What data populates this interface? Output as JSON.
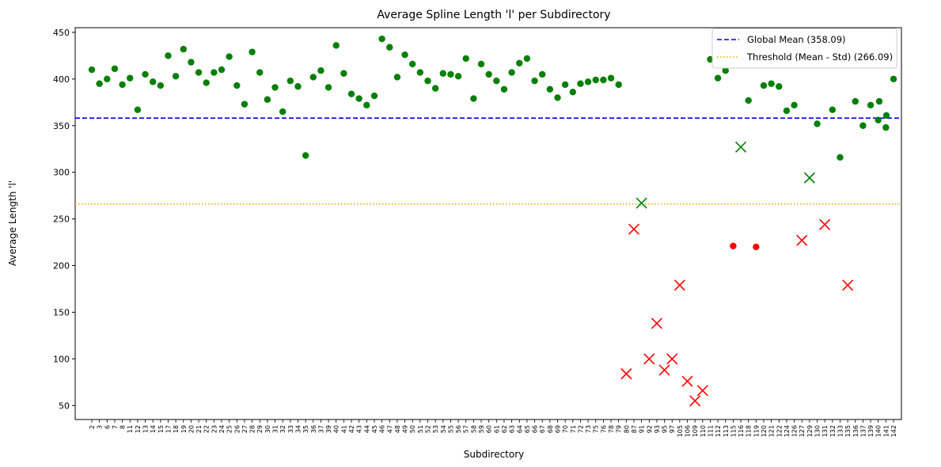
{
  "chart_data": {
    "type": "scatter",
    "title": "Average Spline Length 'l' per Subdirectory",
    "xlabel": "Subdirectory",
    "ylabel": "Average Length 'l'",
    "ylim": [
      35,
      455
    ],
    "yticks": [
      50,
      100,
      150,
      200,
      250,
      300,
      350,
      400,
      450
    ],
    "grid": false,
    "legend_position": "top-right",
    "colors": {
      "normal": "#008000",
      "below_threshold": "#ff0000",
      "global_mean": "#0000ff",
      "threshold": "#ffa500"
    },
    "categories": [
      "2",
      "3",
      "6",
      "7",
      "8",
      "11",
      "12",
      "13",
      "14",
      "15",
      "17",
      "18",
      "19",
      "20",
      "21",
      "22",
      "23",
      "24",
      "25",
      "26",
      "27",
      "28",
      "29",
      "30",
      "31",
      "32",
      "33",
      "34",
      "35",
      "36",
      "37",
      "39",
      "40",
      "41",
      "42",
      "43",
      "44",
      "45",
      "46",
      "47",
      "48",
      "49",
      "50",
      "51",
      "52",
      "53",
      "54",
      "55",
      "56",
      "57",
      "58",
      "59",
      "60",
      "61",
      "62",
      "63",
      "64",
      "65",
      "66",
      "67",
      "68",
      "69",
      "70",
      "71",
      "72",
      "73",
      "75",
      "76",
      "78",
      "79",
      "80",
      "87",
      "91",
      "92",
      "93",
      "95",
      "97",
      "105",
      "106",
      "109",
      "110",
      "111",
      "112",
      "113",
      "115",
      "116",
      "118",
      "119",
      "120",
      "121",
      "122",
      "124",
      "126",
      "127",
      "129",
      "130",
      "131",
      "132",
      "133",
      "135",
      "136",
      "137",
      "139",
      "140",
      "141",
      "142"
    ],
    "points": [
      {
        "x": "2",
        "y": 410,
        "marker": "circle",
        "color": "green"
      },
      {
        "x": "3",
        "y": 395,
        "marker": "circle",
        "color": "green"
      },
      {
        "x": "6",
        "y": 400,
        "marker": "circle",
        "color": "green"
      },
      {
        "x": "7",
        "y": 411,
        "marker": "circle",
        "color": "green"
      },
      {
        "x": "8",
        "y": 394,
        "marker": "circle",
        "color": "green"
      },
      {
        "x": "11",
        "y": 401,
        "marker": "circle",
        "color": "green"
      },
      {
        "x": "12",
        "y": 367,
        "marker": "circle",
        "color": "green"
      },
      {
        "x": "13",
        "y": 405,
        "marker": "circle",
        "color": "green"
      },
      {
        "x": "14",
        "y": 397,
        "marker": "circle",
        "color": "green"
      },
      {
        "x": "15",
        "y": 393,
        "marker": "circle",
        "color": "green"
      },
      {
        "x": "17",
        "y": 425,
        "marker": "circle",
        "color": "green"
      },
      {
        "x": "18",
        "y": 403,
        "marker": "circle",
        "color": "green"
      },
      {
        "x": "19",
        "y": 432,
        "marker": "circle",
        "color": "green"
      },
      {
        "x": "20",
        "y": 418,
        "marker": "circle",
        "color": "green"
      },
      {
        "x": "21",
        "y": 407,
        "marker": "circle",
        "color": "green"
      },
      {
        "x": "22",
        "y": 396,
        "marker": "circle",
        "color": "green"
      },
      {
        "x": "23",
        "y": 407,
        "marker": "circle",
        "color": "green"
      },
      {
        "x": "24",
        "y": 410,
        "marker": "circle",
        "color": "green"
      },
      {
        "x": "25",
        "y": 424,
        "marker": "circle",
        "color": "green"
      },
      {
        "x": "26",
        "y": 393,
        "marker": "circle",
        "color": "green"
      },
      {
        "x": "27",
        "y": 373,
        "marker": "circle",
        "color": "green"
      },
      {
        "x": "28",
        "y": 429,
        "marker": "circle",
        "color": "green"
      },
      {
        "x": "29",
        "y": 407,
        "marker": "circle",
        "color": "green"
      },
      {
        "x": "30",
        "y": 378,
        "marker": "circle",
        "color": "green"
      },
      {
        "x": "31",
        "y": 391,
        "marker": "circle",
        "color": "green"
      },
      {
        "x": "32",
        "y": 365,
        "marker": "circle",
        "color": "green"
      },
      {
        "x": "33",
        "y": 398,
        "marker": "circle",
        "color": "green"
      },
      {
        "x": "34",
        "y": 392,
        "marker": "circle",
        "color": "green"
      },
      {
        "x": "35",
        "y": 318,
        "marker": "circle",
        "color": "green"
      },
      {
        "x": "36",
        "y": 402,
        "marker": "circle",
        "color": "green"
      },
      {
        "x": "37",
        "y": 409,
        "marker": "circle",
        "color": "green"
      },
      {
        "x": "39",
        "y": 391,
        "marker": "circle",
        "color": "green"
      },
      {
        "x": "40",
        "y": 436,
        "marker": "circle",
        "color": "green"
      },
      {
        "x": "41",
        "y": 406,
        "marker": "circle",
        "color": "green"
      },
      {
        "x": "42",
        "y": 384,
        "marker": "circle",
        "color": "green"
      },
      {
        "x": "43",
        "y": 379,
        "marker": "circle",
        "color": "green"
      },
      {
        "x": "44",
        "y": 372,
        "marker": "circle",
        "color": "green"
      },
      {
        "x": "45",
        "y": 382,
        "marker": "circle",
        "color": "green"
      },
      {
        "x": "46",
        "y": 443,
        "marker": "circle",
        "color": "green"
      },
      {
        "x": "47",
        "y": 434,
        "marker": "circle",
        "color": "green"
      },
      {
        "x": "48",
        "y": 402,
        "marker": "circle",
        "color": "green"
      },
      {
        "x": "49",
        "y": 426,
        "marker": "circle",
        "color": "green"
      },
      {
        "x": "50",
        "y": 416,
        "marker": "circle",
        "color": "green"
      },
      {
        "x": "51",
        "y": 407,
        "marker": "circle",
        "color": "green"
      },
      {
        "x": "52",
        "y": 398,
        "marker": "circle",
        "color": "green"
      },
      {
        "x": "53",
        "y": 390,
        "marker": "circle",
        "color": "green"
      },
      {
        "x": "54",
        "y": 406,
        "marker": "circle",
        "color": "green"
      },
      {
        "x": "55",
        "y": 405,
        "marker": "circle",
        "color": "green"
      },
      {
        "x": "56",
        "y": 403,
        "marker": "circle",
        "color": "green"
      },
      {
        "x": "57",
        "y": 422,
        "marker": "circle",
        "color": "green"
      },
      {
        "x": "58",
        "y": 379,
        "marker": "circle",
        "color": "green"
      },
      {
        "x": "59",
        "y": 416,
        "marker": "circle",
        "color": "green"
      },
      {
        "x": "60",
        "y": 405,
        "marker": "circle",
        "color": "green"
      },
      {
        "x": "61",
        "y": 398,
        "marker": "circle",
        "color": "green"
      },
      {
        "x": "62",
        "y": 389,
        "marker": "circle",
        "color": "green"
      },
      {
        "x": "63",
        "y": 407,
        "marker": "circle",
        "color": "green"
      },
      {
        "x": "64",
        "y": 417,
        "marker": "circle",
        "color": "green"
      },
      {
        "x": "65",
        "y": 422,
        "marker": "circle",
        "color": "green"
      },
      {
        "x": "66",
        "y": 398,
        "marker": "circle",
        "color": "green"
      },
      {
        "x": "67",
        "y": 405,
        "marker": "circle",
        "color": "green"
      },
      {
        "x": "68",
        "y": 389,
        "marker": "circle",
        "color": "green"
      },
      {
        "x": "69",
        "y": 380,
        "marker": "circle",
        "color": "green"
      },
      {
        "x": "70",
        "y": 394,
        "marker": "circle",
        "color": "green"
      },
      {
        "x": "71",
        "y": 386,
        "marker": "circle",
        "color": "green"
      },
      {
        "x": "72",
        "y": 395,
        "marker": "circle",
        "color": "green"
      },
      {
        "x": "73",
        "y": 397,
        "marker": "circle",
        "color": "green"
      },
      {
        "x": "75",
        "y": 399,
        "marker": "circle",
        "color": "green"
      },
      {
        "x": "76",
        "y": 399,
        "marker": "circle",
        "color": "green"
      },
      {
        "x": "78",
        "y": 401,
        "marker": "circle",
        "color": "green"
      },
      {
        "x": "79",
        "y": 394,
        "marker": "circle",
        "color": "green"
      },
      {
        "x": "80",
        "y": 84,
        "marker": "x",
        "color": "red"
      },
      {
        "x": "87",
        "y": 239,
        "marker": "x",
        "color": "red"
      },
      {
        "x": "91",
        "y": 267,
        "marker": "x",
        "color": "green"
      },
      {
        "x": "92",
        "y": 100,
        "marker": "x",
        "color": "red"
      },
      {
        "x": "93",
        "y": 138,
        "marker": "x",
        "color": "red"
      },
      {
        "x": "95",
        "y": 88,
        "marker": "x",
        "color": "red"
      },
      {
        "x": "97",
        "y": 100,
        "marker": "x",
        "color": "red"
      },
      {
        "x": "105",
        "y": 179,
        "marker": "x",
        "color": "red"
      },
      {
        "x": "106",
        "y": 76,
        "marker": "x",
        "color": "red"
      },
      {
        "x": "109",
        "y": 55,
        "marker": "x",
        "color": "red"
      },
      {
        "x": "110",
        "y": 66,
        "marker": "x",
        "color": "red"
      },
      {
        "x": "111",
        "y": 421,
        "marker": "circle",
        "color": "green"
      },
      {
        "x": "112",
        "y": 401,
        "marker": "circle",
        "color": "green"
      },
      {
        "x": "113",
        "y": 409,
        "marker": "circle",
        "color": "green"
      },
      {
        "x": "115",
        "y": 221,
        "marker": "circle",
        "color": "red"
      },
      {
        "x": "116",
        "y": 327,
        "marker": "x",
        "color": "green"
      },
      {
        "x": "118",
        "y": 377,
        "marker": "circle",
        "color": "green"
      },
      {
        "x": "119",
        "y": 220,
        "marker": "circle",
        "color": "red"
      },
      {
        "x": "120",
        "y": 393,
        "marker": "circle",
        "color": "green"
      },
      {
        "x": "121",
        "y": 395,
        "marker": "circle",
        "color": "green"
      },
      {
        "x": "122",
        "y": 392,
        "marker": "circle",
        "color": "green"
      },
      {
        "x": "124",
        "y": 366,
        "marker": "circle",
        "color": "green"
      },
      {
        "x": "126",
        "y": 372,
        "marker": "circle",
        "color": "green"
      },
      {
        "x": "127",
        "y": 227,
        "marker": "x",
        "color": "red"
      },
      {
        "x": "129",
        "y": 294,
        "marker": "x",
        "color": "green"
      },
      {
        "x": "130",
        "y": 352,
        "marker": "circle",
        "color": "green"
      },
      {
        "x": "131",
        "y": 244,
        "marker": "x",
        "color": "red"
      },
      {
        "x": "132",
        "y": 367,
        "marker": "circle",
        "color": "green"
      },
      {
        "x": "133",
        "y": 316,
        "marker": "circle",
        "color": "green"
      },
      {
        "x": "135",
        "y": 179,
        "marker": "x",
        "color": "red"
      },
      {
        "x": "136",
        "y": 376,
        "marker": "circle",
        "color": "green"
      },
      {
        "x": "137",
        "y": 350,
        "marker": "circle",
        "color": "green"
      },
      {
        "x": "139",
        "y": 372,
        "marker": "circle",
        "color": "green"
      },
      {
        "x": "140",
        "y": 356,
        "marker": "circle",
        "color": "green"
      },
      {
        "x": "141",
        "y": 348,
        "marker": "circle",
        "color": "green"
      },
      {
        "x": "142",
        "y": 400,
        "marker": "circle",
        "color": "green"
      }
    ],
    "extra_points": [
      {
        "after": "142",
        "y": 376,
        "marker": "circle",
        "color": "green"
      },
      {
        "after": "142",
        "y": 361,
        "marker": "circle",
        "color": "green"
      }
    ],
    "reference_lines": [
      {
        "name": "Global Mean (358.09)",
        "y": 358.09,
        "style": "dashed",
        "color": "global_mean"
      },
      {
        "name": "Threshold (Mean - Std) (266.09)",
        "y": 266.09,
        "style": "dotted",
        "color": "threshold"
      }
    ]
  }
}
